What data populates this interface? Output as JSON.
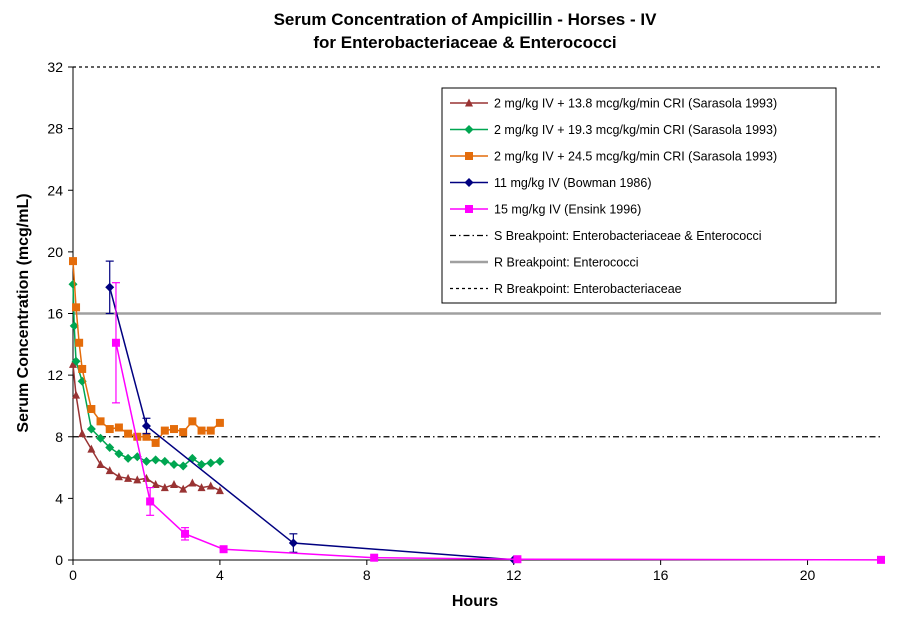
{
  "chart_data": {
    "type": "line",
    "title": [
      "Serum Concentration of Ampicillin  - Horses - IV",
      "for Enterobacteriaceae & Enterococci"
    ],
    "xlabel": "Hours",
    "ylabel": "Serum Concentration (mcg/mL)",
    "xlim": [
      0,
      22
    ],
    "ylim": [
      0,
      32
    ],
    "xticks": [
      0,
      4,
      8,
      12,
      16,
      20
    ],
    "yticks": [
      0,
      4,
      8,
      12,
      16,
      20,
      24,
      28,
      32
    ],
    "grid": false,
    "legend_position": "top-right",
    "series": [
      {
        "name": "2 mg/kg IV + 13.8 mcg/kg/min CRI (Sarasola 1993)",
        "color": "#993333",
        "marker": "triangle",
        "points": [
          [
            0,
            12.7
          ],
          [
            0.083,
            10.7
          ],
          [
            0.25,
            8.2
          ],
          [
            0.5,
            7.2
          ],
          [
            0.75,
            6.2
          ],
          [
            1.0,
            5.8
          ],
          [
            1.25,
            5.4
          ],
          [
            1.5,
            5.3
          ],
          [
            1.75,
            5.2
          ],
          [
            2.0,
            5.3
          ],
          [
            2.25,
            4.9
          ],
          [
            2.5,
            4.7
          ],
          [
            2.75,
            4.9
          ],
          [
            3.0,
            4.6
          ],
          [
            3.25,
            5.0
          ],
          [
            3.5,
            4.7
          ],
          [
            3.75,
            4.8
          ],
          [
            4.0,
            4.5
          ]
        ]
      },
      {
        "name": "2 mg/kg IV + 19.3 mcg/kg/min CRI (Sarasola 1993)",
        "color": "#00A651",
        "marker": "diamond",
        "points": [
          [
            0,
            17.9
          ],
          [
            0.033,
            15.2
          ],
          [
            0.083,
            12.9
          ],
          [
            0.25,
            11.6
          ],
          [
            0.5,
            8.5
          ],
          [
            0.75,
            7.9
          ],
          [
            1.0,
            7.3
          ],
          [
            1.25,
            6.9
          ],
          [
            1.5,
            6.6
          ],
          [
            1.75,
            6.7
          ],
          [
            2.0,
            6.4
          ],
          [
            2.25,
            6.5
          ],
          [
            2.5,
            6.4
          ],
          [
            2.75,
            6.2
          ],
          [
            3.0,
            6.1
          ],
          [
            3.25,
            6.6
          ],
          [
            3.5,
            6.2
          ],
          [
            3.75,
            6.3
          ],
          [
            4.0,
            6.4
          ]
        ]
      },
      {
        "name": "2 mg/kg IV + 24.5 mcg/kg/min CRI (Sarasola 1993)",
        "color": "#E46C0A",
        "marker": "square",
        "points": [
          [
            0,
            19.4
          ],
          [
            0.083,
            16.4
          ],
          [
            0.167,
            14.1
          ],
          [
            0.25,
            12.4
          ],
          [
            0.5,
            9.8
          ],
          [
            0.75,
            9.0
          ],
          [
            1.0,
            8.5
          ],
          [
            1.25,
            8.6
          ],
          [
            1.5,
            8.2
          ],
          [
            1.75,
            8.0
          ],
          [
            2.0,
            8.0
          ],
          [
            2.25,
            7.6
          ],
          [
            2.5,
            8.4
          ],
          [
            2.75,
            8.5
          ],
          [
            3.0,
            8.3
          ],
          [
            3.25,
            9.0
          ],
          [
            3.5,
            8.4
          ],
          [
            3.75,
            8.4
          ],
          [
            4.0,
            8.9
          ]
        ]
      },
      {
        "name": "11 mg/kg IV (Bowman 1986)",
        "color": "#000080",
        "marker": "diamond",
        "points": [
          [
            1,
            17.7
          ],
          [
            2,
            8.7
          ],
          [
            6,
            1.1
          ],
          [
            12,
            0.02
          ]
        ],
        "error": [
          1.7,
          0.5,
          0.6,
          0
        ]
      },
      {
        "name": "15 mg/kg IV (Ensink 1996)",
        "color": "#FF00FF",
        "marker": "square",
        "points": [
          [
            1.17,
            14.1
          ],
          [
            2.1,
            3.8
          ],
          [
            3.05,
            1.7
          ],
          [
            4.1,
            0.7
          ],
          [
            8.2,
            0.15
          ],
          [
            12.1,
            0.05
          ],
          [
            22,
            0.01
          ]
        ],
        "error": [
          3.9,
          0.9,
          0.4,
          0,
          0,
          0,
          0
        ]
      }
    ],
    "reference_lines": [
      {
        "name": "S Breakpoint: Enterobacteriaceae & Enterococci",
        "y": 8,
        "color": "#000000",
        "style": "dash-dot"
      },
      {
        "name": "R Breakpoint: Enterococci",
        "y": 16,
        "color": "#A0A0A0",
        "style": "solid"
      },
      {
        "name": "R Breakpoint: Enterobacteriaceae",
        "y": 32,
        "color": "#000000",
        "style": "dotted"
      }
    ]
  }
}
